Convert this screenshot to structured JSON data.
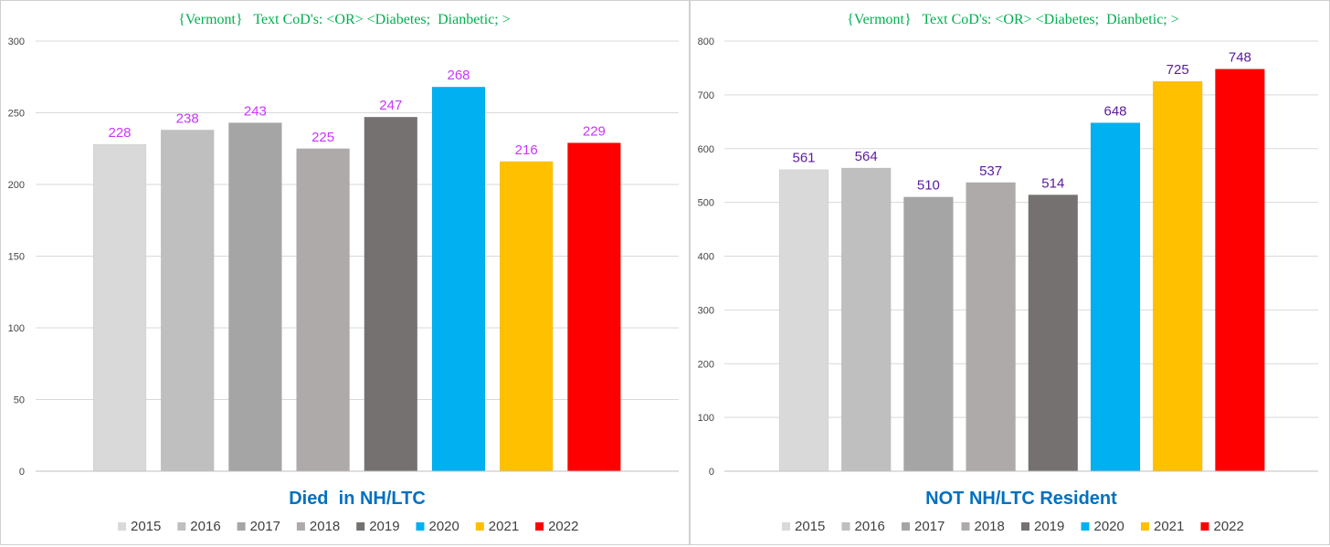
{
  "colors": {
    "2015": "#d9d9d9",
    "2016": "#bfbfbf",
    "2017": "#a5a5a5",
    "2018": "#aeaaaa",
    "2019": "#767171",
    "2020": "#00b0f0",
    "2021": "#ffc000",
    "2022": "#ff0000",
    "title": "#00b050",
    "xtitle": "#0070c0"
  },
  "chart_data": [
    {
      "type": "bar",
      "title": "{Vermont}   Text CoD's: <OR> <Diabetes;  Dianbetic; >",
      "xlabel": "Died  in NH/LTC",
      "ylabel": "",
      "ylim": [
        0,
        300
      ],
      "yticks": [
        0,
        50,
        100,
        150,
        200,
        250,
        300
      ],
      "ytick_labels": [
        "0",
        "50",
        "100",
        "150",
        "200",
        "250",
        "300"
      ],
      "categories": [
        "2015",
        "2016",
        "2017",
        "2018",
        "2019",
        "2020",
        "2021",
        "2022"
      ],
      "values": [
        228,
        238,
        243,
        225,
        247,
        268,
        216,
        229
      ],
      "data_labels": [
        "228",
        "238",
        "243",
        "225",
        "247",
        "268",
        "216",
        "229"
      ],
      "data_label_color": "#cc33ff",
      "legend": [
        "2015",
        "2016",
        "2017",
        "2018",
        "2019",
        "2020",
        "2021",
        "2022"
      ],
      "legend_position": "bottom",
      "grid": true
    },
    {
      "type": "bar",
      "title": "{Vermont}   Text CoD's: <OR> <Diabetes;  Dianbetic; >",
      "xlabel": "NOT NH/LTC Resident",
      "ylabel": "",
      "ylim": [
        0,
        800
      ],
      "yticks": [
        0,
        100,
        200,
        300,
        400,
        500,
        600,
        700,
        800
      ],
      "ytick_labels": [
        "0",
        "100",
        "200",
        "300",
        "400",
        "500",
        "600",
        "700",
        "800"
      ],
      "categories": [
        "2015",
        "2016",
        "2017",
        "2018",
        "2019",
        "2020",
        "2021",
        "2022"
      ],
      "values": [
        561,
        564,
        510,
        537,
        514,
        648,
        725,
        748
      ],
      "data_labels": [
        "561",
        "564",
        "510",
        "537",
        "514",
        "648",
        "725",
        "748"
      ],
      "data_label_color": "#5b1a9e",
      "legend": [
        "2015",
        "2016",
        "2017",
        "2018",
        "2019",
        "2020",
        "2021",
        "2022"
      ],
      "legend_position": "bottom",
      "grid": true
    }
  ]
}
